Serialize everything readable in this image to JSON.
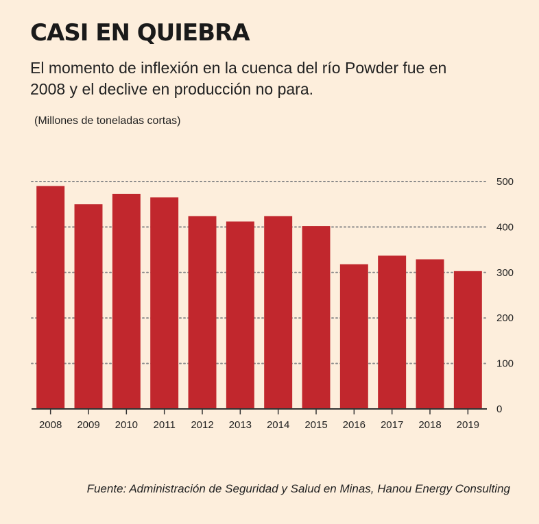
{
  "header": {
    "title": "CASI EN QUIEBRA",
    "subtitle": "El momento de inflexión en la cuenca del río Powder fue en 2008 y el declive en producción no para.",
    "unit_label": "(Millones de toneladas cortas)"
  },
  "footer": {
    "source": "Fuente: Administración de Seguridad y Salud en Minas, Hanou Energy Consulting"
  },
  "colors": {
    "background": "#fdeedc",
    "bar": "#c1272d",
    "grid": "#8a8a8a",
    "axis": "#333333"
  },
  "chart_data": {
    "type": "bar",
    "categories": [
      "2008",
      "2009",
      "2010",
      "2011",
      "2012",
      "2013",
      "2014",
      "2015",
      "2016",
      "2017",
      "2018",
      "2019"
    ],
    "values": [
      490,
      450,
      473,
      465,
      424,
      412,
      424,
      402,
      318,
      337,
      329,
      303
    ],
    "ylim": [
      0,
      500
    ],
    "yticks": [
      0,
      100,
      200,
      300,
      400,
      500
    ],
    "y_axis_side": "right",
    "grid": true
  }
}
